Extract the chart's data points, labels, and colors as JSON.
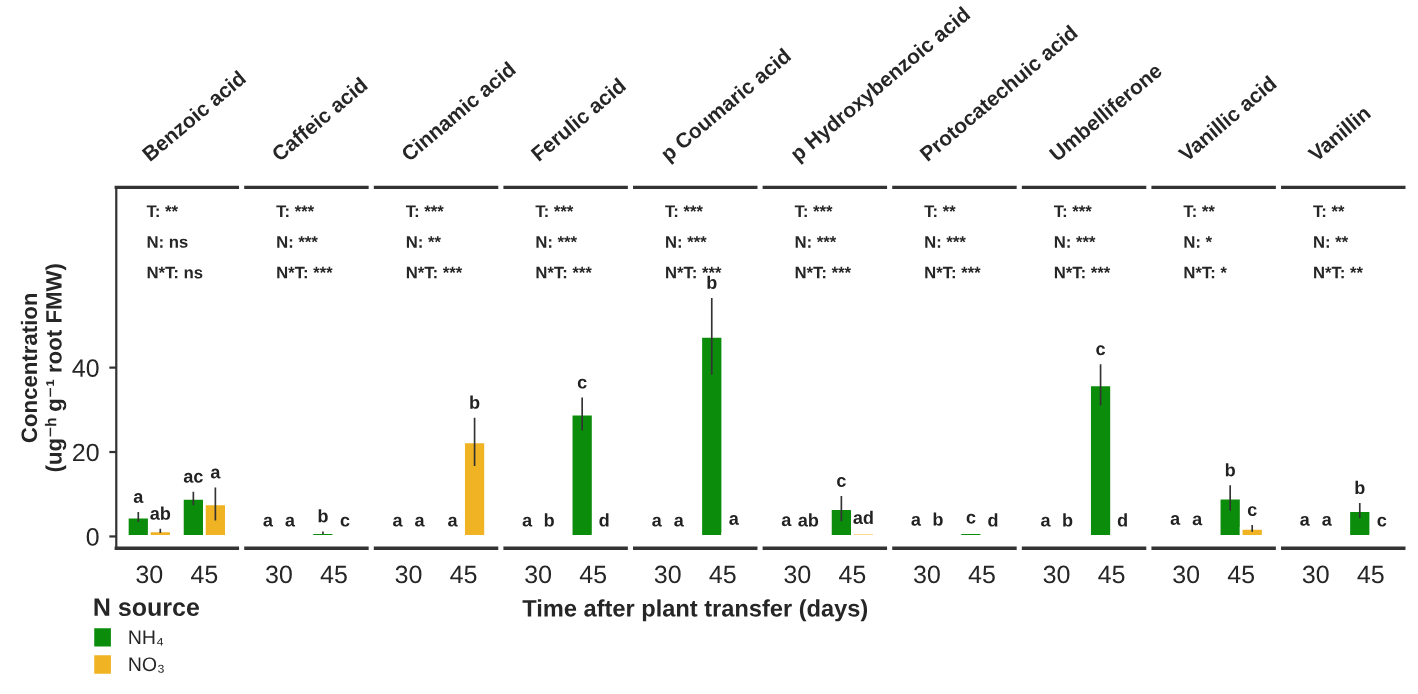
{
  "chart_data": [
    {
      "type": "bar",
      "title": "Benzoic acid",
      "categories": [
        "30",
        "45"
      ],
      "ylim": [
        -2.8,
        82.7
      ],
      "yticks": [
        0,
        20,
        40
      ],
      "tick_labels": "xy",
      "ylabel": "Concentration\n(ug⁻ʰ g⁻¹ root FMW)",
      "legend": "bottom left",
      "legend_title": "N source",
      "grid": false,
      "series": [
        {
          "name": "NH₄",
          "color": "#0b8c0b",
          "values": [
            4.6,
            9.0
          ],
          "errors": [
            1.2,
            1.6
          ],
          "value_labels": [
            "a",
            "ac"
          ]
        },
        {
          "name": "NO₃",
          "color": "#f0b323",
          "values": [
            1.3,
            7.7
          ],
          "errors": [
            0.5,
            3.9
          ],
          "value_labels": [
            "ab",
            "a"
          ]
        }
      ],
      "annotations": [
        "T: **",
        "N: ns",
        "N*T: ns"
      ]
    },
    {
      "type": "bar",
      "title": "Caffeic acid",
      "categories": [
        "30",
        "45"
      ],
      "ylim": [
        -2.8,
        82.7
      ],
      "yticks": [
        0,
        20,
        40
      ],
      "tick_labels": "x",
      "series": [
        {
          "color": "#0b8c0b",
          "values": [
            0.2,
            0.9
          ],
          "errors": [
            null,
            0.3
          ],
          "value_labels": [
            "a",
            "b"
          ]
        },
        {
          "color": "#f0b323",
          "values": [
            0.2,
            0.2
          ],
          "errors": [
            null,
            null
          ],
          "value_labels": [
            "a",
            "c"
          ]
        }
      ],
      "annotations": [
        "T: ***",
        "N: ***",
        "N*T: ***"
      ]
    },
    {
      "type": "bar",
      "title": "Cinnamic acid",
      "categories": [
        "30",
        "45"
      ],
      "ylim": [
        -2.8,
        82.7
      ],
      "yticks": [
        0,
        20,
        40
      ],
      "tick_labels": "x",
      "series": [
        {
          "color": "#0b8c0b",
          "values": [
            0.2,
            0.2
          ],
          "errors": [
            null,
            null
          ],
          "value_labels": [
            "a",
            "a"
          ]
        },
        {
          "color": "#f0b323",
          "values": [
            0.2,
            22.4
          ],
          "errors": [
            null,
            5.7
          ],
          "value_labels": [
            "a",
            "b"
          ]
        }
      ],
      "annotations": [
        "T: ***",
        "N: **",
        "N*T: ***"
      ]
    },
    {
      "type": "bar",
      "title": "Ferulic acid",
      "categories": [
        "30",
        "45"
      ],
      "ylim": [
        -2.8,
        82.7
      ],
      "yticks": [
        0,
        20,
        40
      ],
      "tick_labels": "x",
      "series": [
        {
          "color": "#0b8c0b",
          "values": [
            0.2,
            29.0
          ],
          "errors": [
            null,
            3.9
          ],
          "value_labels": [
            "a",
            "c"
          ]
        },
        {
          "color": "#f0b323",
          "values": [
            0.2,
            0.2
          ],
          "errors": [
            null,
            null
          ],
          "value_labels": [
            "b",
            "d"
          ]
        }
      ],
      "annotations": [
        "T: ***",
        "N: ***",
        "N*T: ***"
      ]
    },
    {
      "type": "bar",
      "title": "p Coumaric acid",
      "xlabel": "Time after plant transfer (days)",
      "categories": [
        "30",
        "45"
      ],
      "ylim": [
        -2.8,
        82.7
      ],
      "yticks": [
        0,
        20,
        40
      ],
      "tick_labels": "x",
      "series": [
        {
          "color": "#0b8c0b",
          "values": [
            0.2,
            47.4
          ],
          "errors": [
            null,
            9.1
          ],
          "value_labels": [
            "a",
            "b"
          ]
        },
        {
          "color": "#f0b323",
          "values": [
            0.2,
            0.6
          ],
          "errors": [
            null,
            null
          ],
          "value_labels": [
            "a",
            "a"
          ]
        }
      ],
      "annotations": [
        "T: ***",
        "N: ***",
        "N*T: ***"
      ]
    },
    {
      "type": "bar",
      "title": "p Hydroxybenzoic acid",
      "categories": [
        "30",
        "45"
      ],
      "ylim": [
        -2.8,
        82.7
      ],
      "yticks": [
        0,
        20,
        40
      ],
      "tick_labels": "x",
      "series": [
        {
          "color": "#0b8c0b",
          "values": [
            0.3,
            6.6
          ],
          "errors": [
            null,
            3.0
          ],
          "value_labels": [
            "a",
            "c"
          ]
        },
        {
          "color": "#f0b323",
          "values": [
            0.2,
            0.8
          ],
          "errors": [
            null,
            null
          ],
          "value_labels": [
            "ab",
            "ad"
          ]
        }
      ],
      "annotations": [
        "T: ***",
        "N: ***",
        "N*T: ***"
      ]
    },
    {
      "type": "bar",
      "title": "Protocatechuic acid",
      "categories": [
        "30",
        "45"
      ],
      "ylim": [
        -2.8,
        82.7
      ],
      "yticks": [
        0,
        20,
        40
      ],
      "tick_labels": "x",
      "series": [
        {
          "color": "#0b8c0b",
          "values": [
            0.4,
            0.9
          ],
          "errors": [
            null,
            null
          ],
          "value_labels": [
            "a",
            "c"
          ]
        },
        {
          "color": "#f0b323",
          "values": [
            0.4,
            0.2
          ],
          "errors": [
            null,
            null
          ],
          "value_labels": [
            "b",
            "d"
          ]
        }
      ],
      "annotations": [
        "T: **",
        "N: ***",
        "N*T: ***"
      ]
    },
    {
      "type": "bar",
      "title": "Umbelliferone",
      "categories": [
        "30",
        "45"
      ],
      "ylim": [
        -2.8,
        82.7
      ],
      "yticks": [
        0,
        20,
        40
      ],
      "tick_labels": "x",
      "series": [
        {
          "color": "#0b8c0b",
          "values": [
            0.2,
            35.9
          ],
          "errors": [
            null,
            4.9
          ],
          "value_labels": [
            "a",
            "c"
          ]
        },
        {
          "color": "#f0b323",
          "values": [
            0.2,
            0.2
          ],
          "errors": [
            null,
            null
          ],
          "value_labels": [
            "b",
            "d"
          ]
        }
      ],
      "annotations": [
        "T: ***",
        "N: ***",
        "N*T: ***"
      ]
    },
    {
      "type": "bar",
      "title": "Vanillic acid",
      "categories": [
        "30",
        "45"
      ],
      "ylim": [
        -2.8,
        82.7
      ],
      "yticks": [
        0,
        20,
        40
      ],
      "tick_labels": "x",
      "series": [
        {
          "color": "#0b8c0b",
          "values": [
            0.6,
            9.1
          ],
          "errors": [
            null,
            3.0
          ],
          "value_labels": [
            "a",
            "b"
          ]
        },
        {
          "color": "#f0b323",
          "values": [
            0.5,
            1.9
          ],
          "errors": [
            null,
            0.8
          ],
          "value_labels": [
            "a",
            "c"
          ]
        }
      ],
      "annotations": [
        "T: **",
        "N: *",
        "N*T: *"
      ]
    },
    {
      "type": "bar",
      "title": "Vanillin",
      "categories": [
        "30",
        "45"
      ],
      "ylim": [
        -2.8,
        82.7
      ],
      "yticks": [
        0,
        20,
        40
      ],
      "tick_labels": "x",
      "series": [
        {
          "color": "#0b8c0b",
          "values": [
            0.4,
            6.1
          ],
          "errors": [
            null,
            1.8
          ],
          "value_labels": [
            "a",
            "b"
          ]
        },
        {
          "color": "#f0b323",
          "values": [
            0.4,
            0.2
          ],
          "errors": [
            null,
            null
          ],
          "value_labels": [
            "a",
            "c"
          ]
        }
      ],
      "annotations": [
        "T: **",
        "N: **",
        "N*T: **"
      ]
    }
  ]
}
